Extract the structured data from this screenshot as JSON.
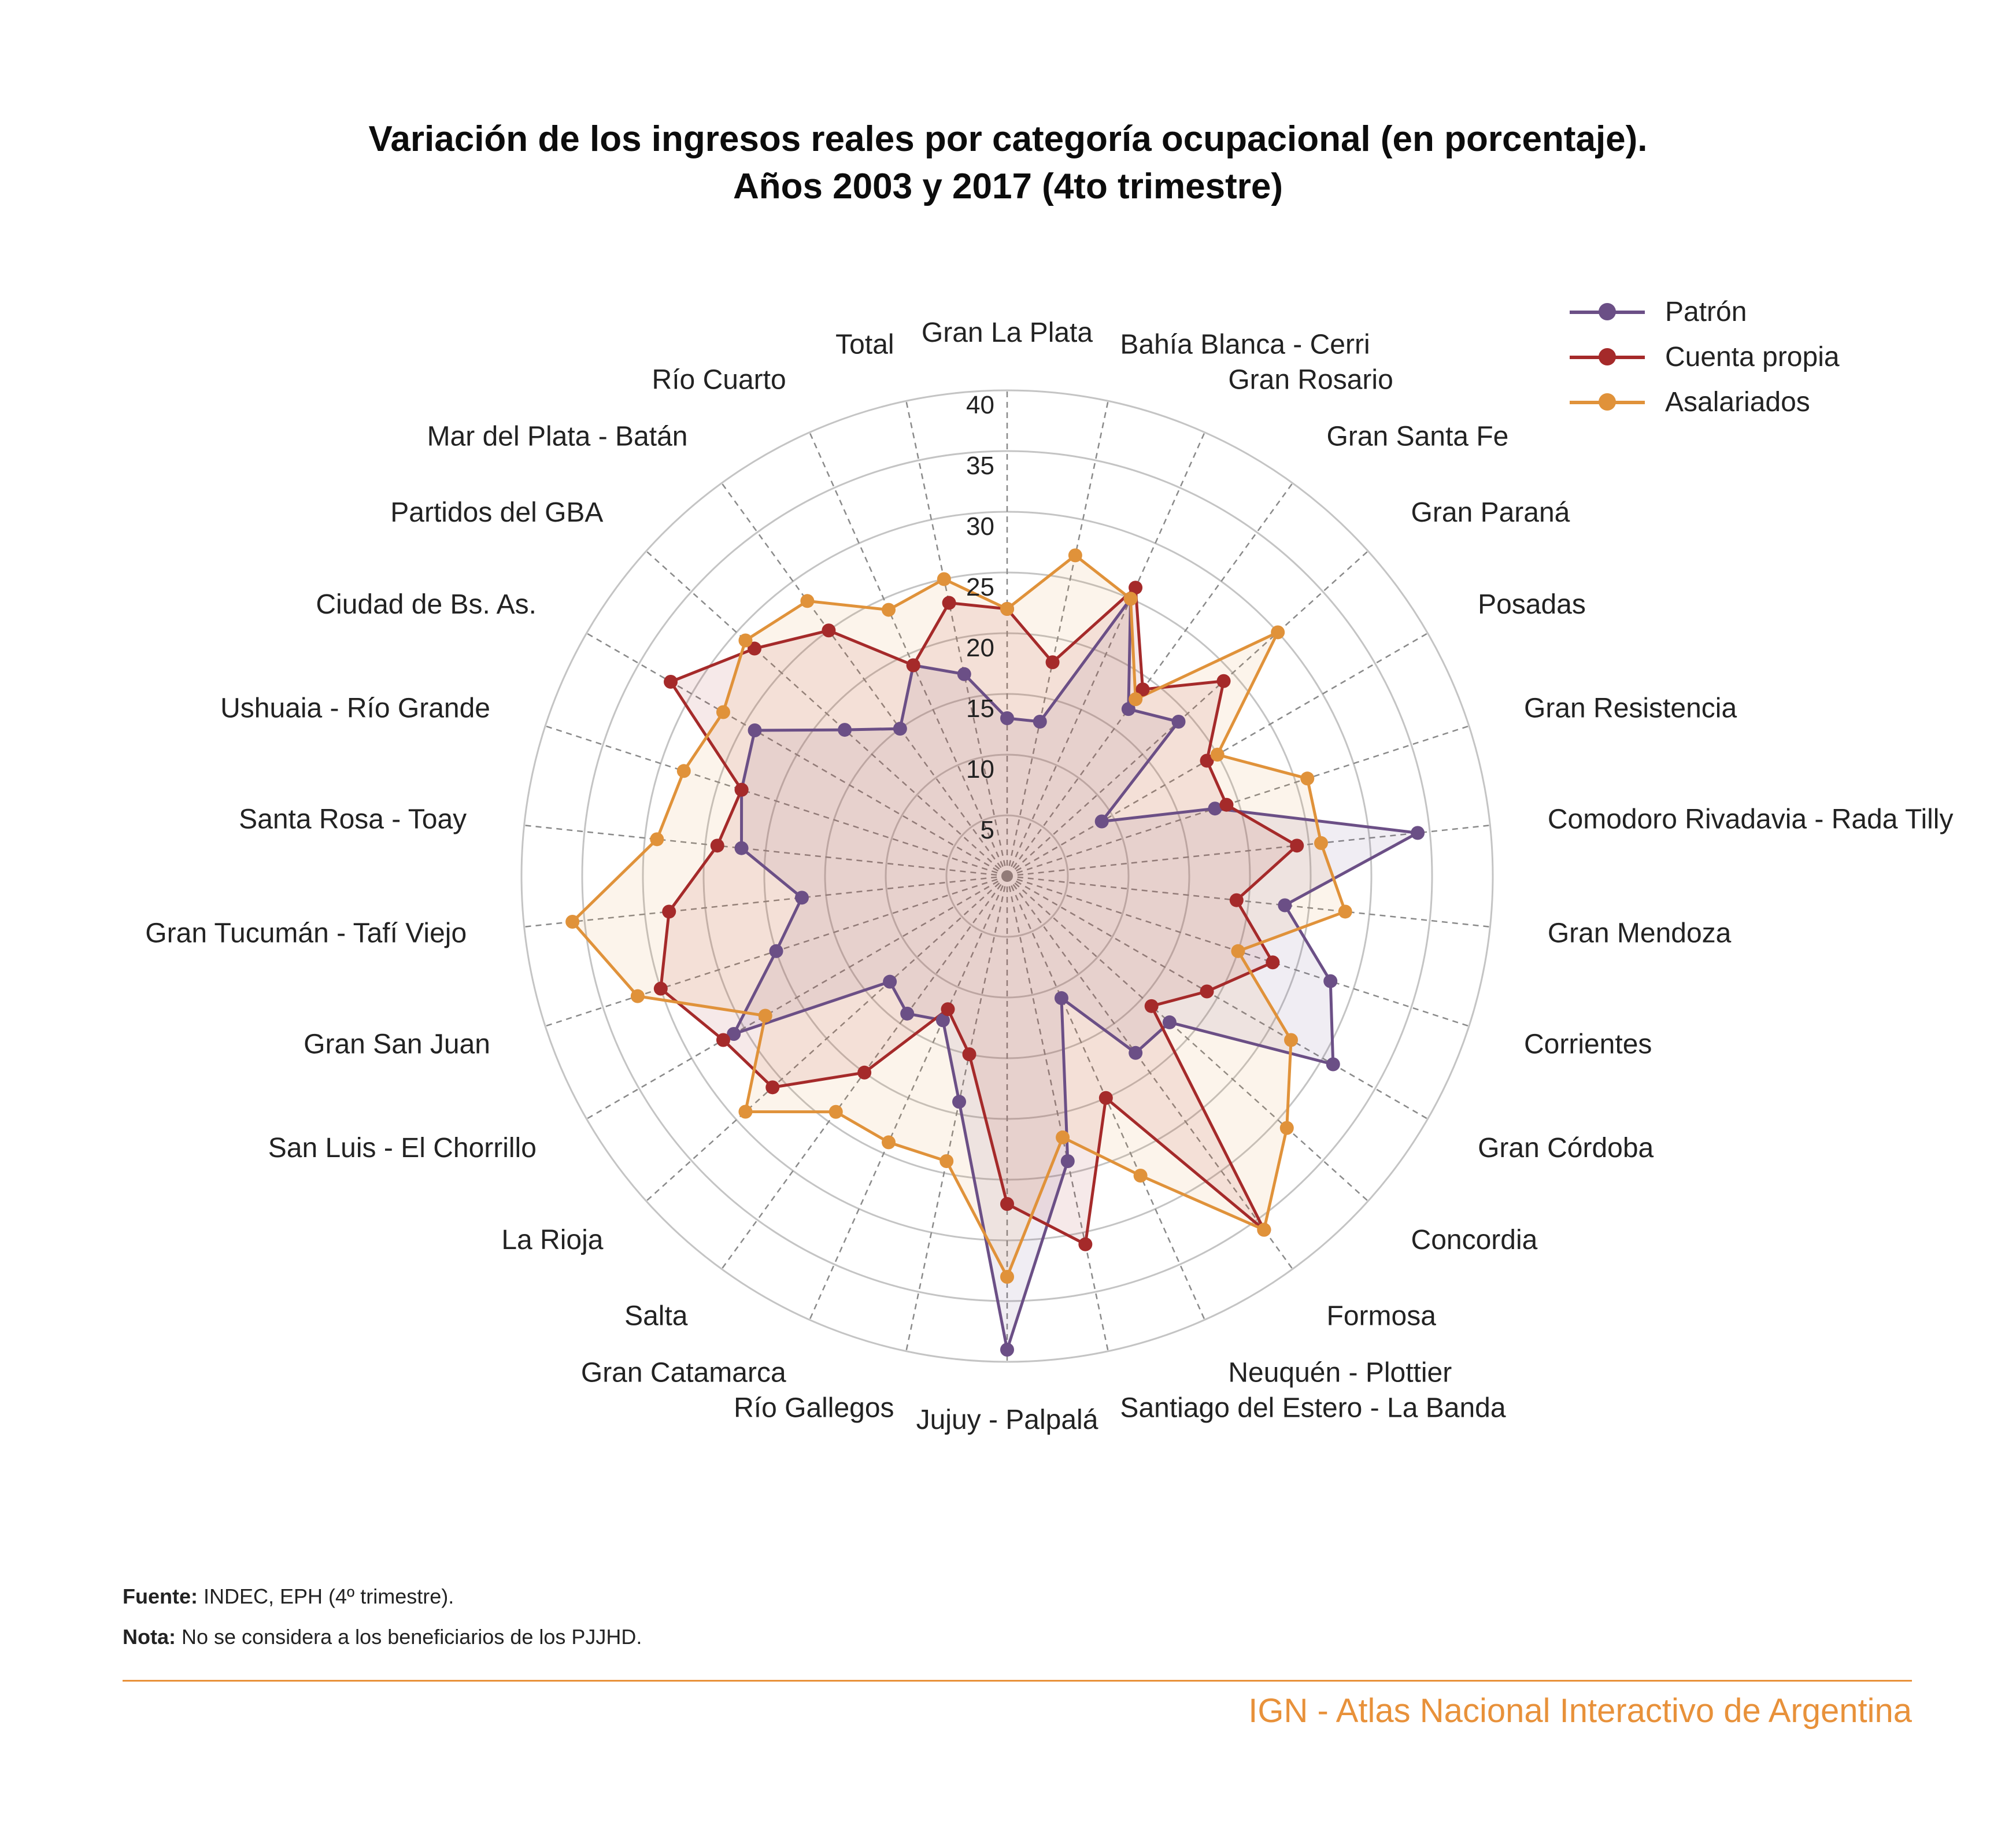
{
  "chart_data": {
    "type": "radar",
    "title": "Variación de los ingresos reales por categoría ocupacional (en porcentaje).",
    "subtitle": "Años 2003 y 2017 (4to trimestre)",
    "r_ticks": [
      5,
      10,
      15,
      20,
      25,
      30,
      35,
      40
    ],
    "r_max": 40,
    "grid": true,
    "legend_position": "top-right",
    "categories": [
      "Gran La Plata",
      "Bahía Blanca - Cerri",
      "Gran Rosario",
      "Gran  Santa Fe",
      "Gran  Paraná",
      "Posadas",
      "Gran Resistencia",
      "Comodoro Rivadavia - Rada Tilly",
      "Gran Mendoza",
      "Corrientes",
      "Gran Córdoba",
      "Concordia",
      "Formosa",
      "Neuquén - Plottier",
      "Santiago del Estero - La Banda",
      "Jujuy - Palpalá",
      "Río Gallegos",
      "Gran Catamarca",
      "Salta",
      "La Rioja",
      "San Luis - El Chorrillo",
      "Gran  San Juan",
      "Gran Tucumán - Tafí Viejo",
      "Santa Rosa - Toay",
      "Ushuaia - Río Grande",
      "Ciudad de Bs. As.",
      "Partidos del GBA",
      "Mar del Plata - Batán",
      "Río Cuarto",
      "Total"
    ],
    "series": [
      {
        "name": "Patrón",
        "color": "#6B4F86",
        "values": [
          13,
          13,
          25,
          17,
          19,
          9,
          18,
          34,
          23,
          28,
          31,
          18,
          18,
          11,
          24,
          39,
          19,
          13,
          14,
          13,
          26,
          20,
          17,
          22,
          23,
          24,
          18,
          15,
          19,
          17
        ]
      },
      {
        "name": "Cuenta propia",
        "color": "#A52A2A",
        "values": [
          22,
          18,
          26,
          19,
          24,
          19,
          19,
          24,
          19,
          23,
          19,
          16,
          36,
          20,
          31,
          27,
          15,
          12,
          20,
          26,
          27,
          30,
          28,
          24,
          23,
          32,
          28,
          25,
          19,
          23
        ]
      },
      {
        "name": "Asalariados",
        "color": "#E0923A",
        "values": [
          22,
          27,
          25,
          18,
          30,
          20,
          26,
          26,
          28,
          20,
          27,
          31,
          36,
          27,
          22,
          33,
          24,
          24,
          24,
          29,
          23,
          32,
          36,
          29,
          28,
          27,
          29,
          28,
          24,
          25
        ]
      }
    ]
  },
  "footnotes": {
    "fuente_label": "Fuente:",
    "fuente_text": "INDEC, EPH (4º trimestre).",
    "nota_label": "Nota:",
    "nota_text": "No se considera a los beneficiarios de los PJJHD."
  },
  "credit": "IGN - Atlas Nacional Interactivo de Argentina"
}
